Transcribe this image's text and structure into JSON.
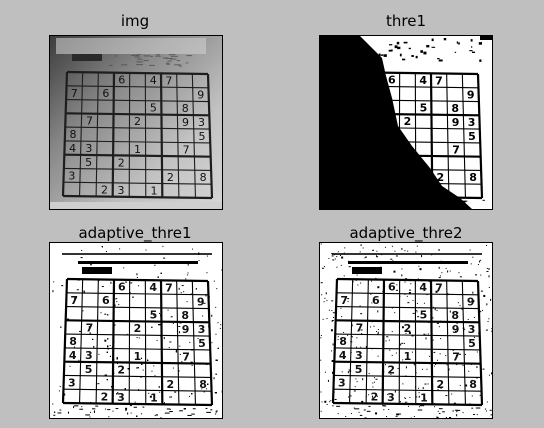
{
  "figure": {
    "background": "#bfbfbf",
    "panels": [
      {
        "id": "img",
        "title": "img",
        "style": "grayscale"
      },
      {
        "id": "thre1",
        "title": "thre1",
        "style": "global-threshold"
      },
      {
        "id": "adaptive1",
        "title": "adaptive_thre1",
        "style": "adaptive-mean"
      },
      {
        "id": "adaptive2",
        "title": "adaptive_thre2",
        "style": "adaptive-gaussian"
      }
    ]
  },
  "chart_data": {
    "type": "image-grid",
    "rows": 2,
    "cols": 2,
    "titles": [
      "img",
      "thre1",
      "adaptive_thre1",
      "adaptive_thre2"
    ],
    "image_content": "sudoku puzzle photograph",
    "sudoku_digits": [
      {
        "r": 0,
        "c": 3,
        "d": "6"
      },
      {
        "r": 0,
        "c": 5,
        "d": "4"
      },
      {
        "r": 0,
        "c": 6,
        "d": "7"
      },
      {
        "r": 1,
        "c": 0,
        "d": "7"
      },
      {
        "r": 1,
        "c": 2,
        "d": "6"
      },
      {
        "r": 1,
        "c": 8,
        "d": "9"
      },
      {
        "r": 2,
        "c": 5,
        "d": "5"
      },
      {
        "r": 2,
        "c": 7,
        "d": "8"
      },
      {
        "r": 3,
        "c": 1,
        "d": "7"
      },
      {
        "r": 3,
        "c": 4,
        "d": "2"
      },
      {
        "r": 3,
        "c": 7,
        "d": "9"
      },
      {
        "r": 3,
        "c": 8,
        "d": "3"
      },
      {
        "r": 4,
        "c": 0,
        "d": "8"
      },
      {
        "r": 4,
        "c": 8,
        "d": "5"
      },
      {
        "r": 5,
        "c": 0,
        "d": "4"
      },
      {
        "r": 5,
        "c": 1,
        "d": "3"
      },
      {
        "r": 5,
        "c": 4,
        "d": "1"
      },
      {
        "r": 5,
        "c": 7,
        "d": "7"
      },
      {
        "r": 6,
        "c": 1,
        "d": "5"
      },
      {
        "r": 6,
        "c": 3,
        "d": "2"
      },
      {
        "r": 7,
        "c": 0,
        "d": "3"
      },
      {
        "r": 7,
        "c": 6,
        "d": "2"
      },
      {
        "r": 7,
        "c": 8,
        "d": "8"
      },
      {
        "r": 8,
        "c": 2,
        "d": "2"
      },
      {
        "r": 8,
        "c": 3,
        "d": "3"
      },
      {
        "r": 8,
        "c": 5,
        "d": "1"
      }
    ]
  }
}
